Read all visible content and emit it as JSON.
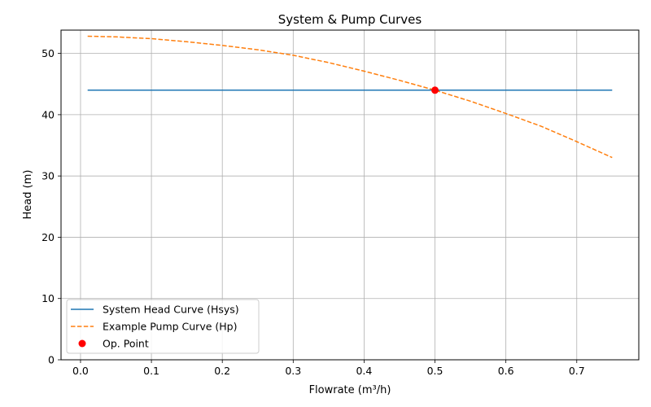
{
  "chart_data": {
    "type": "line",
    "title": "System & Pump Curves",
    "xlabel": "Flowrate (m³/h)",
    "ylabel": "Head (m)",
    "xlim": [
      -0.0275,
      0.7875
    ],
    "ylim": [
      0,
      53.8
    ],
    "x_ticks": [
      0.0,
      0.1,
      0.2,
      0.3,
      0.4,
      0.5,
      0.6,
      0.7
    ],
    "y_ticks": [
      0,
      10,
      20,
      30,
      40,
      50
    ],
    "grid": true,
    "legend_position": "lower-left",
    "series": [
      {
        "name": "System Head Curve (Hsys)",
        "kind": "line",
        "style": "solid",
        "color": "#1f77b4",
        "x": [
          0.01,
          0.75
        ],
        "y": [
          44,
          44
        ]
      },
      {
        "name": "Example Pump Curve (Hp)",
        "kind": "line",
        "style": "dashed",
        "color": "#ff7f0e",
        "x": [
          0.01,
          0.05,
          0.1,
          0.15,
          0.2,
          0.25,
          0.3,
          0.35,
          0.4,
          0.45,
          0.5,
          0.55,
          0.6,
          0.65,
          0.7,
          0.75
        ],
        "y": [
          52.8,
          52.7,
          52.4,
          51.9,
          51.3,
          50.6,
          49.7,
          48.5,
          47.1,
          45.6,
          44.0,
          42.2,
          40.2,
          38.1,
          35.6,
          33.0
        ]
      },
      {
        "name": "Op. Point",
        "kind": "scatter",
        "color": "#ff0000",
        "x": [
          0.5
        ],
        "y": [
          44.0
        ]
      }
    ]
  }
}
